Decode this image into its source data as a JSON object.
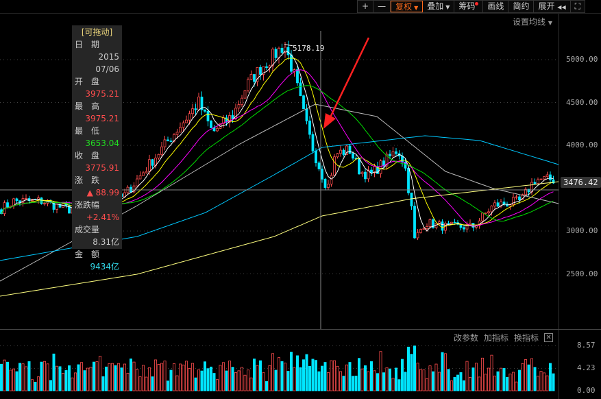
{
  "toolbar": {
    "plus": "+",
    "minus": "—",
    "fuquan": "复权",
    "overlay": "叠加",
    "chips": "筹码",
    "draw": "画线",
    "simple": "简约",
    "expand": "展开",
    "expand_icon": "double-left-arrow-icon",
    "fullscreen_icon": "fullscreen-icon"
  },
  "ma_setting": "设置均线",
  "info": {
    "drag": "[可拖动]",
    "date_label": "日　期",
    "year": "2015",
    "date": "07/06",
    "open_label": "开　盘",
    "open": "3975.21",
    "high_label": "最　高",
    "high": "3975.21",
    "low_label": "最　低",
    "low": "3653.04",
    "close_label": "收　盘",
    "close": "3775.91",
    "change_label": "涨　跌",
    "change": "▲ 88.99",
    "pct_label": "涨跌幅",
    "pct": "+2.41%",
    "vol_label": "成交量",
    "vol": "8.31亿",
    "amt_label": "金　额",
    "amt": "9434亿"
  },
  "volume_panel": {
    "edit": "改参数",
    "add": "加指标",
    "switch": "换指标",
    "close_icon": "close-icon"
  },
  "colors": {
    "up": "#ff4d4d",
    "down": "#00e5ff",
    "ma5": "#ffffff",
    "ma10": "#ffff00",
    "ma20": "#ff00ff",
    "ma30": "#00dd00",
    "long_gray": "#bbbbbb",
    "long_cyan": "#00c8ff",
    "long_yellow": "#ffff80",
    "accent": "#ff6a1a"
  },
  "chart_data": {
    "type": "candlestick",
    "price_ticks": [
      "5000.00",
      "4500.00",
      "4000.00",
      "3000.00",
      "2500.00"
    ],
    "price_tick_values": [
      5000,
      4500,
      4000,
      3000,
      2500
    ],
    "ylim": [
      2000,
      5300
    ],
    "current_price": "3476.42",
    "peak_label": "5178.19",
    "volume_ticks": [
      "8.57",
      "4.23",
      "0.00"
    ],
    "volume_ylim": [
      0,
      8.57
    ],
    "close_path": [
      [
        0,
        3250
      ],
      [
        20,
        3350
      ],
      [
        60,
        3350
      ],
      [
        100,
        3250
      ],
      [
        140,
        3300
      ],
      [
        180,
        3400
      ],
      [
        220,
        3800
      ],
      [
        260,
        4200
      ],
      [
        290,
        4500
      ],
      [
        310,
        4150
      ],
      [
        340,
        4350
      ],
      [
        360,
        4700
      ],
      [
        380,
        4900
      ],
      [
        400,
        5050
      ],
      [
        415,
        5178
      ],
      [
        430,
        4800
      ],
      [
        445,
        4300
      ],
      [
        455,
        4000
      ],
      [
        468,
        3700
      ],
      [
        478,
        3500
      ],
      [
        490,
        3900
      ],
      [
        510,
        3950
      ],
      [
        525,
        3700
      ],
      [
        540,
        3650
      ],
      [
        560,
        3800
      ],
      [
        580,
        3950
      ],
      [
        590,
        3800
      ],
      [
        600,
        3300
      ],
      [
        605,
        2900
      ],
      [
        620,
        3100
      ],
      [
        650,
        3050
      ],
      [
        690,
        3050
      ],
      [
        720,
        3300
      ],
      [
        760,
        3350
      ],
      [
        780,
        3600
      ],
      [
        812,
        3600
      ]
    ],
    "long_ma": {
      "gray": [
        [
          0,
          2416
        ],
        [
          200,
          3296
        ],
        [
          350,
          4016
        ],
        [
          460,
          4480
        ],
        [
          550,
          4336
        ],
        [
          650,
          3696
        ],
        [
          720,
          3496
        ],
        [
          815,
          3320
        ]
      ],
      "cyan": [
        [
          0,
          2656
        ],
        [
          200,
          2936
        ],
        [
          300,
          3216
        ],
        [
          400,
          3656
        ],
        [
          470,
          3976
        ],
        [
          620,
          4112
        ],
        [
          700,
          4056
        ],
        [
          815,
          3776
        ]
      ],
      "yellow": [
        [
          0,
          2240
        ],
        [
          200,
          2496
        ],
        [
          400,
          2936
        ],
        [
          470,
          3176
        ],
        [
          600,
          3376
        ],
        [
          815,
          3576
        ]
      ]
    }
  }
}
